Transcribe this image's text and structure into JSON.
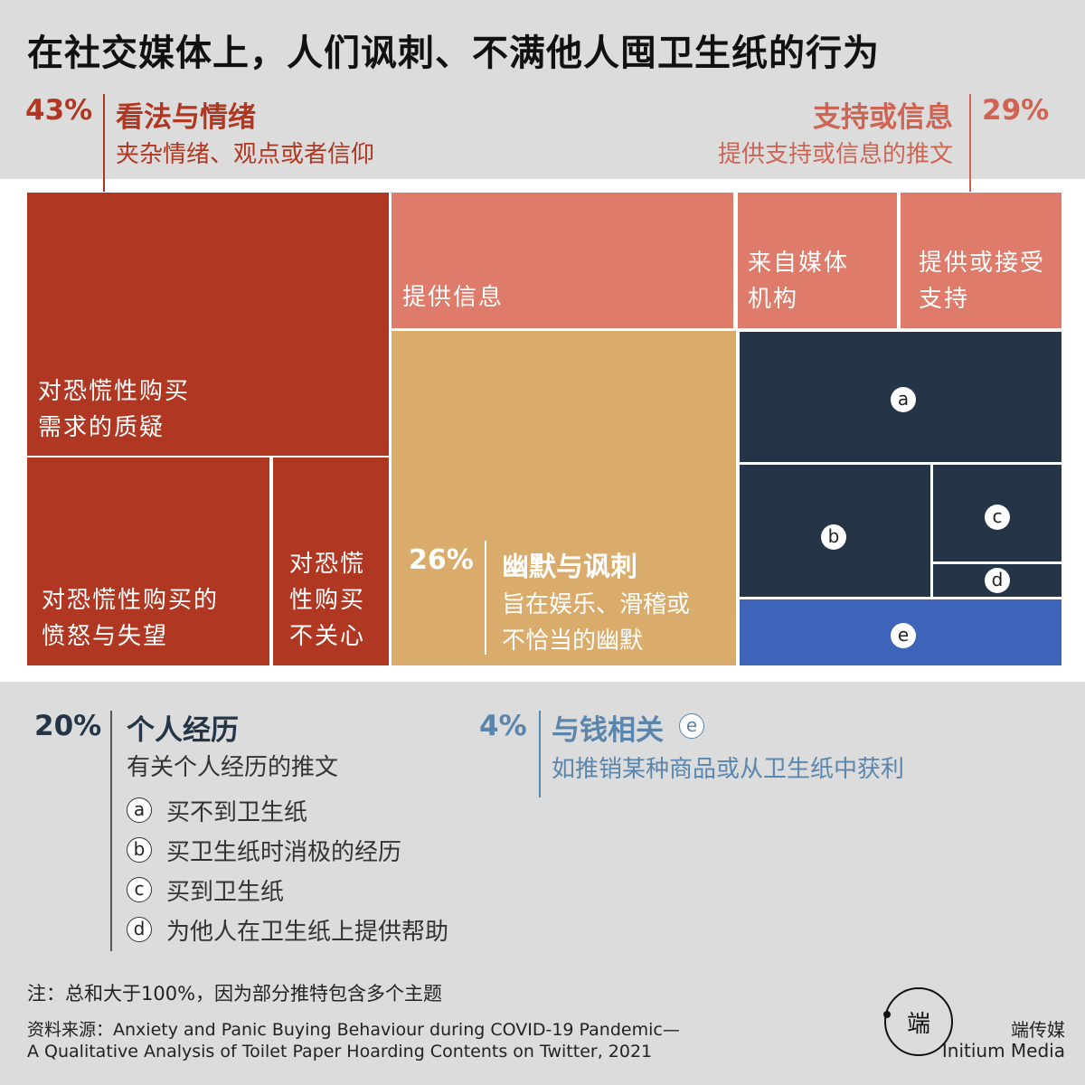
{
  "title": "在社交媒体上，人们讽刺、不满他人囤卫生纸的行为",
  "colors": {
    "opinion": "#b03722",
    "support": "#df7b6b",
    "humor": "#d9ac6b",
    "personal": "#233546",
    "money": "#3d64b8",
    "opinion_text": "#b03722",
    "support_text": "#cf6453",
    "personal_text": "#233546",
    "money_text": "#5a86ad"
  },
  "categories": {
    "opinion": {
      "pct": "43%",
      "title": "看法与情绪",
      "desc": "夹杂情绪、观点或者信仰"
    },
    "support": {
      "pct": "29%",
      "title": "支持或信息",
      "desc": "提供支持或信息的推文"
    },
    "humor": {
      "pct": "26%",
      "title": "幽默与讽刺",
      "desc1": "旨在娱乐、滑稽或",
      "desc2": "不恰当的幽默"
    },
    "personal": {
      "pct": "20%",
      "title": "个人经历",
      "desc": "有关个人经历的推文"
    },
    "money": {
      "pct": "4%",
      "title": "与钱相关",
      "marker": "e",
      "desc": "如推销某种商品或从卫生纸中获利"
    }
  },
  "tiles": {
    "op1": {
      "line1": "对恐慌性购买",
      "line2": "需求的质疑"
    },
    "op2": {
      "line1": "对恐慌性购买的",
      "line2": "愤怒与失望"
    },
    "op3": {
      "line1": "对恐慌",
      "line2": "性购买",
      "line3": "不关心"
    },
    "sup1": {
      "line1": "提供信息"
    },
    "sup2": {
      "line1": "来自媒体",
      "line2": "机构"
    },
    "sup3": {
      "line1": "提供或接受",
      "line2": "支持"
    },
    "a": "a",
    "b": "b",
    "c": "c",
    "d": "d",
    "e": "e"
  },
  "legend": [
    {
      "marker": "a",
      "text": "买不到卫生纸"
    },
    {
      "marker": "b",
      "text": "买卫生纸时消极的经历"
    },
    {
      "marker": "c",
      "text": "买到卫生纸"
    },
    {
      "marker": "d",
      "text": "为他人在卫生纸上提供帮助"
    }
  ],
  "notes": {
    "note": "注：总和大于100%，因为部分推特包含多个主题",
    "source1": "资料来源：Anxiety and Panic Buying Behaviour during COVID-19 Pandemic—",
    "source2": "A Qualitative Analysis of Toilet Paper Hoarding Contents on Twitter, 2021"
  },
  "brand": {
    "logo_text": "端",
    "name_cn": "端传媒",
    "name_en": "Initium Media"
  },
  "chart_data": {
    "type": "treemap",
    "title": "在社交媒体上，人们讽刺、不满他人囤卫生纸的行为",
    "groups": [
      {
        "name": "看法与情绪",
        "value": 43,
        "children": [
          "对恐慌性购买需求的质疑",
          "对恐慌性购买的愤怒与失望",
          "对恐慌性购买不关心"
        ]
      },
      {
        "name": "支持或信息",
        "value": 29,
        "children": [
          "提供信息",
          "来自媒体机构",
          "提供或接受支持"
        ]
      },
      {
        "name": "幽默与讽刺",
        "value": 26,
        "children": []
      },
      {
        "name": "个人经历",
        "value": 20,
        "children": [
          "买不到卫生纸",
          "买卫生纸时消极的经历",
          "买到卫生纸",
          "为他人在卫生纸上提供帮助"
        ]
      },
      {
        "name": "与钱相关",
        "value": 4,
        "children": []
      }
    ]
  }
}
